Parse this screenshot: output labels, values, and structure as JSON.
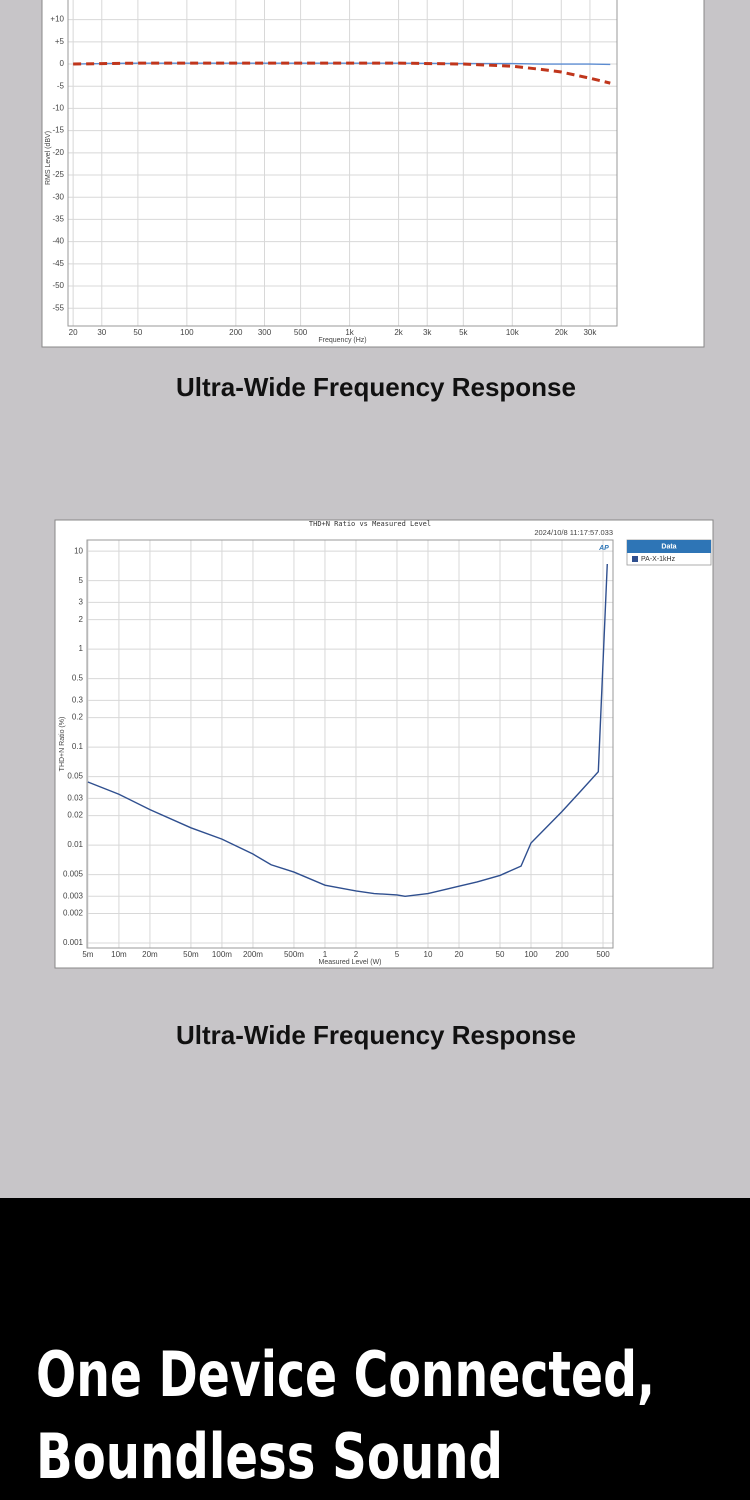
{
  "chart_data": [
    {
      "type": "line",
      "x_label": "Frequency (Hz)",
      "y_label": "RMS Level (dBV)",
      "x": [
        20,
        30,
        50,
        100,
        200,
        500,
        1000,
        2000,
        5000,
        10000,
        15000,
        20000,
        30000,
        40000
      ],
      "series": [
        {
          "color": "#5b8bd0",
          "style": "solid",
          "values": [
            0,
            0.1,
            0.2,
            0.2,
            0.2,
            0.2,
            0.2,
            0.2,
            0.1,
            0.1,
            0,
            0,
            0,
            -0.1
          ]
        },
        {
          "color": "#c0361c",
          "style": "dashed",
          "values": [
            0,
            0.1,
            0.2,
            0.2,
            0.2,
            0.2,
            0.2,
            0.2,
            0,
            -0.5,
            -1.2,
            -1.8,
            -3.2,
            -4.3
          ]
        }
      ],
      "xlog": true,
      "ylog": false,
      "grid": true,
      "xlim": [
        18.6,
        44000
      ],
      "ylim": [
        -59,
        13
      ],
      "xticks": [
        20,
        30,
        50,
        100,
        200,
        300,
        500,
        {
          "value": 1000,
          "label": "1k"
        },
        {
          "value": 2000,
          "label": "2k"
        },
        {
          "value": 3000,
          "label": "3k"
        },
        {
          "value": 5000,
          "label": "5k"
        },
        {
          "value": 10000,
          "label": "10k"
        },
        {
          "value": 20000,
          "label": "20k"
        },
        {
          "value": 30000,
          "label": "30k"
        }
      ],
      "yticks": [
        {
          "value": 10,
          "label": "+10"
        },
        {
          "value": 5,
          "label": "+5"
        },
        0,
        -5,
        -10,
        -15,
        -20,
        -25,
        -30,
        -35,
        -40,
        -45,
        -50,
        -55
      ]
    },
    {
      "type": "line",
      "title": "THD+N Ratio vs Measured Level",
      "timestamp": "2024/10/8 11:17:57.033",
      "logo": "AP",
      "x_label": "Measured Level (W)",
      "y_label": "THD+N Ratio (%)",
      "legend_title": "Data",
      "legend": "right",
      "x": [
        0.005,
        0.01,
        0.02,
        0.05,
        0.1,
        0.2,
        0.3,
        0.5,
        1,
        2,
        3,
        5,
        6,
        10,
        20,
        30,
        50,
        80,
        100,
        200,
        300,
        450,
        550
      ],
      "series": [
        {
          "name": "PA-X-1kHz",
          "color": "#2f4f8f",
          "style": "solid",
          "values": [
            0.044,
            0.033,
            0.023,
            0.015,
            0.0115,
            0.0081,
            0.0063,
            0.0053,
            0.0039,
            0.0034,
            0.0032,
            0.0031,
            0.003,
            0.0032,
            0.0038,
            0.0042,
            0.0049,
            0.0061,
            0.0105,
            0.022,
            0.035,
            0.056,
            7.4
          ]
        }
      ],
      "xlog": true,
      "ylog": true,
      "grid": true,
      "xlim": [
        0.0049,
        625
      ],
      "ylim": [
        0.00089,
        13
      ],
      "xticks": [
        {
          "value": 0.005,
          "label": "5m"
        },
        {
          "value": 0.01,
          "label": "10m"
        },
        {
          "value": 0.02,
          "label": "20m"
        },
        {
          "value": 0.05,
          "label": "50m"
        },
        {
          "value": 0.1,
          "label": "100m"
        },
        {
          "value": 0.2,
          "label": "200m"
        },
        {
          "value": 0.5,
          "label": "500m"
        },
        1,
        2,
        5,
        10,
        20,
        50,
        100,
        200,
        500
      ],
      "yticks": [
        10,
        5,
        3,
        2,
        1,
        0.5,
        0.3,
        0.2,
        0.1,
        0.05,
        0.03,
        0.02,
        0.01,
        0.005,
        0.003,
        0.002,
        0.001
      ]
    }
  ],
  "captions": [
    "Ultra-Wide Frequency Response",
    "Ultra-Wide Frequency Response"
  ],
  "banner": {
    "lines": [
      "One Device Connected,",
      "Boundless Sound"
    ]
  }
}
